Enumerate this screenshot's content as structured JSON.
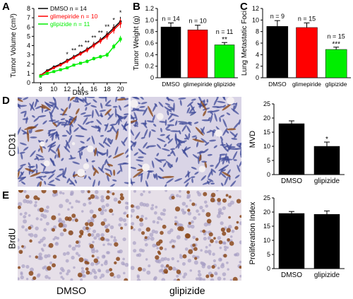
{
  "panel_letters": {
    "a": "A",
    "b": "B",
    "c": "C",
    "d": "D",
    "e": "E"
  },
  "row_labels": {
    "d": "CD31",
    "e": "BrdU"
  },
  "column_labels": {
    "left": "DMSO",
    "right": "glipizide"
  },
  "colors": {
    "dmso": "#000000",
    "glimepiride": "#ff0000",
    "glipizide": "#00ee00",
    "stain_brown": "#8b4a1c",
    "tissue_blue": "#5a64a8",
    "background_pale": "#e6dfe8"
  },
  "chart_data": [
    {
      "id": "A",
      "type": "line",
      "ylabel": "Tumor Volume (cm³)",
      "xlabel": "Days",
      "xlim": [
        7,
        21
      ],
      "ylim": [
        0,
        8
      ],
      "xticks": [
        "8",
        "10",
        "12",
        "14",
        "16",
        "18",
        "20"
      ],
      "yticks": [
        "0",
        "1",
        "2",
        "3",
        "4",
        "5",
        "6",
        "7",
        "8"
      ],
      "legend_position": "top-left",
      "x": [
        8,
        9,
        10,
        11,
        12,
        13,
        14,
        15,
        16,
        17,
        18,
        19,
        20
      ],
      "series": [
        {
          "name": "DMSO n = 14",
          "values": [
            0.8,
            1.3,
            1.7,
            2.0,
            2.4,
            2.8,
            3.2,
            3.6,
            4.1,
            4.6,
            5.2,
            5.9,
            6.6
          ],
          "err": [
            0.1,
            0.1,
            0.15,
            0.15,
            0.2,
            0.2,
            0.2,
            0.25,
            0.3,
            0.3,
            0.35,
            0.4,
            0.5
          ]
        },
        {
          "name": "glimepiride n = 10",
          "values": [
            0.8,
            1.2,
            1.6,
            1.9,
            2.3,
            2.7,
            3.1,
            3.5,
            4.0,
            4.5,
            5.0,
            5.7,
            6.4
          ],
          "err": [
            0.1,
            0.1,
            0.15,
            0.15,
            0.2,
            0.2,
            0.2,
            0.25,
            0.3,
            0.3,
            0.35,
            0.4,
            0.5
          ]
        },
        {
          "name": "glipizide n = 11",
          "values": [
            0.7,
            1.0,
            1.2,
            1.4,
            1.6,
            1.9,
            2.1,
            2.3,
            2.6,
            2.8,
            3.0,
            3.9,
            4.7
          ],
          "err": [
            0.1,
            0.1,
            0.1,
            0.1,
            0.15,
            0.15,
            0.15,
            0.2,
            0.2,
            0.2,
            0.25,
            0.3,
            0.35
          ]
        }
      ],
      "annotations": [
        {
          "x": 12,
          "text": "*"
        },
        {
          "x": 13,
          "text": "**"
        },
        {
          "x": 14,
          "text": "**"
        },
        {
          "x": 15,
          "text": "**"
        },
        {
          "x": 16,
          "text": "**"
        },
        {
          "x": 17,
          "text": "**"
        },
        {
          "x": 18,
          "text": "**"
        },
        {
          "x": 19,
          "text": "*"
        },
        {
          "x": 20,
          "text": "*"
        }
      ]
    },
    {
      "id": "B",
      "type": "bar",
      "ylabel": "Tumor Weight (g)",
      "ylim": [
        0,
        1.2
      ],
      "yticks": [
        "0",
        "0.2",
        "0.4",
        "0.6",
        "0.8",
        "1.0",
        "1.2"
      ],
      "categories": [
        "DMSO",
        "glimepiride",
        "glipizide"
      ],
      "values": [
        0.88,
        0.83,
        0.57
      ],
      "err": [
        0.07,
        0.08,
        0.04
      ],
      "bar_colors": [
        "#000000",
        "#ff0000",
        "#00ee00"
      ],
      "top_labels": [
        "n = 14",
        "n = 10",
        "n = 11"
      ],
      "sig_labels": [
        "",
        "",
        "**"
      ]
    },
    {
      "id": "C",
      "type": "bar",
      "ylabel": "Lung Metastatic Foci",
      "ylim": [
        0,
        12
      ],
      "yticks": [
        "0",
        "2",
        "4",
        "6",
        "8",
        "10",
        "12"
      ],
      "categories": [
        "DMSO",
        "glimepiride",
        "glipizide"
      ],
      "values": [
        8.9,
        8.7,
        4.9
      ],
      "err": [
        1.0,
        0.8,
        0.4
      ],
      "bar_colors": [
        "#000000",
        "#ff0000",
        "#00ee00"
      ],
      "top_labels": [
        "n = 9",
        "n = 15",
        "n = 15"
      ],
      "sig_labels": [
        "",
        "",
        "***"
      ]
    },
    {
      "id": "D-right",
      "type": "bar",
      "ylabel": "MVD",
      "ylim": [
        0,
        25
      ],
      "yticks": [
        "0",
        "5",
        "10",
        "15",
        "20",
        "25"
      ],
      "categories": [
        "DMSO",
        "glipizide"
      ],
      "values": [
        18,
        10
      ],
      "err": [
        1.0,
        1.5
      ],
      "bar_colors": [
        "#000000",
        "#000000"
      ],
      "sig_labels": [
        "",
        "*"
      ]
    },
    {
      "id": "E-right",
      "type": "bar",
      "ylabel": "Proliferation Index",
      "ylim": [
        0,
        25
      ],
      "yticks": [
        "0",
        "5",
        "10",
        "15",
        "20",
        "25"
      ],
      "categories": [
        "DMSO",
        "glipizide"
      ],
      "values": [
        19.5,
        19.2
      ],
      "err": [
        0.7,
        1.2
      ],
      "bar_colors": [
        "#000000",
        "#000000"
      ],
      "sig_labels": [
        "",
        ""
      ]
    }
  ]
}
